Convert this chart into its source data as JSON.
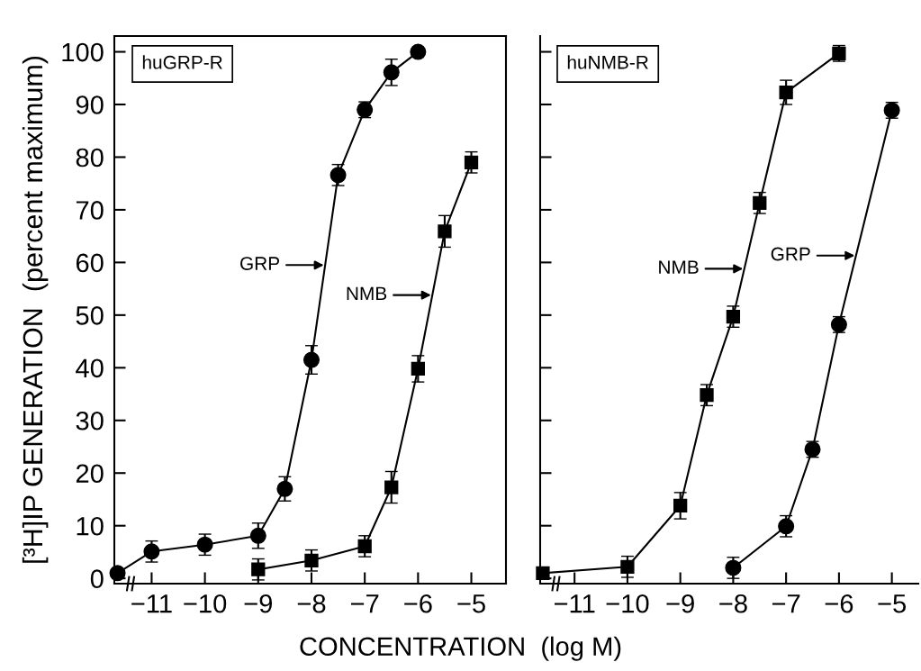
{
  "chart_data": [
    {
      "type": "line",
      "title": "huGRP-R",
      "ylabel": "[³H]IP GENERATION  (percent maximum)",
      "xlabel": "CONCENTRATION  (log M)",
      "xlim": [
        -11.7,
        -4.35
      ],
      "ylim": [
        -1,
        103
      ],
      "xticks": [
        {
          "value": -11,
          "label": "−11"
        },
        {
          "value": -10,
          "label": "−10"
        },
        {
          "value": -9,
          "label": "−9"
        },
        {
          "value": -8,
          "label": "−8"
        },
        {
          "value": -7,
          "label": "−7"
        },
        {
          "value": -6,
          "label": "−6"
        },
        {
          "value": -5,
          "label": "−5"
        }
      ],
      "yticks": [
        0,
        10,
        20,
        30,
        40,
        50,
        60,
        70,
        80,
        90,
        100
      ],
      "series": [
        {
          "color": "#000000",
          "marker": "circle",
          "x": [
            -11.64,
            -11,
            -10,
            -9,
            -8.5,
            -8,
            -7.5,
            -7,
            -6.5,
            -6
          ],
          "values": [
            1,
            5.1,
            6.4,
            8.1,
            17,
            41.5,
            76.6,
            89,
            96.1,
            100
          ],
          "errors": [
            null,
            2,
            2,
            2.4,
            2.3,
            2.7,
            2,
            1.5,
            2.5,
            null
          ]
        },
        {
          "color": "#000000",
          "marker": "square",
          "x": [
            -9,
            -8,
            -7,
            -6.5,
            -6,
            -5.5,
            -5
          ],
          "values": [
            1.7,
            3.4,
            6.1,
            17.3,
            39.8,
            65.9,
            79
          ],
          "errors": [
            2,
            2,
            2,
            3,
            2.5,
            3,
            2
          ]
        }
      ],
      "annotations": [
        {
          "text": "GRP",
          "x": -7.744,
          "y": 59.5
        },
        {
          "text": "NMB",
          "x": -5.732,
          "y": 53.8
        }
      ],
      "grid": false,
      "legend": false
    },
    {
      "type": "line",
      "title": "huNMB-R",
      "xlim": [
        -11.65,
        -4.5
      ],
      "ylim": [
        -1,
        103
      ],
      "xticks": [
        {
          "value": -11,
          "label": "−11"
        },
        {
          "value": -10,
          "label": "−10"
        },
        {
          "value": -9,
          "label": "−9"
        },
        {
          "value": -8,
          "label": "−8"
        },
        {
          "value": -7,
          "label": "−7"
        },
        {
          "value": -6,
          "label": "−6"
        },
        {
          "value": -5,
          "label": "−5"
        }
      ],
      "yticks": [
        0,
        10,
        20,
        30,
        40,
        50,
        60,
        70,
        80,
        90,
        100
      ],
      "tick_labels": "x",
      "series": [
        {
          "color": "#000000",
          "marker": "square",
          "x": [
            -11.6,
            -10,
            -9,
            -8.5,
            -8,
            -7.5,
            -7,
            -6
          ],
          "values": [
            1,
            2.2,
            13.8,
            34.8,
            49.7,
            71.3,
            92.3,
            99.7
          ],
          "errors": [
            null,
            2,
            2.5,
            2,
            2,
            2,
            2.3,
            1.5
          ]
        },
        {
          "color": "#000000",
          "marker": "circle",
          "x": [
            -8,
            -7,
            -6.5,
            -6,
            -5
          ],
          "values": [
            2,
            9.9,
            24.5,
            48.2,
            88.9
          ],
          "errors": [
            2,
            2,
            1.5,
            1.5,
            1.5
          ]
        }
      ],
      "annotations": [
        {
          "text": "NMB",
          "x": -7.79,
          "y": 58.8
        },
        {
          "text": "GRP",
          "x": -5.678,
          "y": 61.3
        }
      ],
      "grid": false,
      "legend": false
    }
  ]
}
